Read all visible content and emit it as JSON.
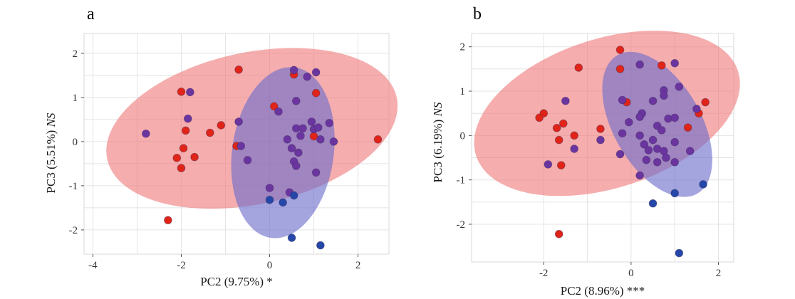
{
  "chart_data": [
    {
      "type": "scatter",
      "panel_label": "a",
      "xlabel": "PC2 (9.75%) *",
      "ylabel_prefix": "PC3 (5.51%) ",
      "ylabel_italic": "NS",
      "xlim": [
        -4.2,
        2.7
      ],
      "ylim": [
        -2.55,
        2.45
      ],
      "xticks": [
        -4,
        -2,
        0,
        2
      ],
      "yticks": [
        -2,
        -1,
        0,
        1,
        2
      ],
      "grid": true,
      "colors": {
        "red": "#e02418",
        "purple": "#6b35a0",
        "blue": "#2447a8",
        "red_ellipse": "#ef7b7d",
        "blue_ellipse": "#6c6ccc"
      },
      "ellipses": [
        {
          "group": "red",
          "cx": -0.4,
          "cy": 0.3,
          "rx": 3.35,
          "ry": 1.72,
          "angle_deg": 12
        },
        {
          "group": "blue",
          "cx": 0.3,
          "cy": -0.25,
          "rx": 1.15,
          "ry": 1.95,
          "angle_deg": -8
        }
      ],
      "points": [
        {
          "group": "red",
          "x": -0.7,
          "y": 1.63
        },
        {
          "group": "red",
          "x": -2.0,
          "y": 1.13
        },
        {
          "group": "red",
          "x": -1.9,
          "y": 0.25
        },
        {
          "group": "red",
          "x": -1.35,
          "y": 0.2
        },
        {
          "group": "red",
          "x": -1.1,
          "y": 0.37
        },
        {
          "group": "red",
          "x": -2.1,
          "y": -0.37
        },
        {
          "group": "red",
          "x": -1.95,
          "y": -0.15
        },
        {
          "group": "red",
          "x": -1.7,
          "y": -0.35
        },
        {
          "group": "red",
          "x": -2.0,
          "y": -0.6
        },
        {
          "group": "red",
          "x": -2.3,
          "y": -1.78
        },
        {
          "group": "red",
          "x": 2.45,
          "y": 0.05
        },
        {
          "group": "red",
          "x": 0.55,
          "y": 1.52
        },
        {
          "group": "red",
          "x": 0.1,
          "y": 0.8
        },
        {
          "group": "red",
          "x": 1.05,
          "y": 1.1
        },
        {
          "group": "red",
          "x": -0.75,
          "y": -0.1
        },
        {
          "group": "red",
          "x": 1.0,
          "y": 0.12
        },
        {
          "group": "purple",
          "x": -2.8,
          "y": 0.18
        },
        {
          "group": "purple",
          "x": -1.8,
          "y": 1.12
        },
        {
          "group": "purple",
          "x": -1.85,
          "y": 0.52
        },
        {
          "group": "purple",
          "x": -0.7,
          "y": 0.45
        },
        {
          "group": "purple",
          "x": -0.65,
          "y": -0.1
        },
        {
          "group": "purple",
          "x": -0.5,
          "y": -0.42
        },
        {
          "group": "purple",
          "x": 0.2,
          "y": 0.68
        },
        {
          "group": "purple",
          "x": 0.55,
          "y": 1.62
        },
        {
          "group": "purple",
          "x": 0.85,
          "y": 1.47
        },
        {
          "group": "purple",
          "x": 1.05,
          "y": 1.57
        },
        {
          "group": "purple",
          "x": 0.6,
          "y": 0.92
        },
        {
          "group": "purple",
          "x": 0.4,
          "y": 0.05
        },
        {
          "group": "purple",
          "x": 0.6,
          "y": 0.3
        },
        {
          "group": "purple",
          "x": 0.75,
          "y": 0.3
        },
        {
          "group": "purple",
          "x": 0.95,
          "y": 0.45
        },
        {
          "group": "purple",
          "x": 1.0,
          "y": 0.28
        },
        {
          "group": "purple",
          "x": 1.1,
          "y": 0.32
        },
        {
          "group": "purple",
          "x": 1.35,
          "y": 0.42
        },
        {
          "group": "purple",
          "x": 0.7,
          "y": 0.13
        },
        {
          "group": "purple",
          "x": 1.15,
          "y": 0.05
        },
        {
          "group": "purple",
          "x": 1.45,
          "y": 0.0
        },
        {
          "group": "purple",
          "x": 0.5,
          "y": -0.15
        },
        {
          "group": "purple",
          "x": 0.65,
          "y": -0.25
        },
        {
          "group": "purple",
          "x": 0.55,
          "y": -0.45
        },
        {
          "group": "purple",
          "x": 0.6,
          "y": -0.55
        },
        {
          "group": "purple",
          "x": 1.05,
          "y": -0.7
        },
        {
          "group": "purple",
          "x": 0.0,
          "y": -1.05
        },
        {
          "group": "purple",
          "x": 0.45,
          "y": -1.15
        },
        {
          "group": "blue",
          "x": 0.0,
          "y": -1.32
        },
        {
          "group": "blue",
          "x": 0.3,
          "y": -1.38
        },
        {
          "group": "blue",
          "x": 0.55,
          "y": -1.22
        },
        {
          "group": "blue",
          "x": 0.5,
          "y": -2.18
        },
        {
          "group": "blue",
          "x": 1.15,
          "y": -2.35
        }
      ]
    },
    {
      "type": "scatter",
      "panel_label": "b",
      "xlabel": "PC2 (8.96%) ***",
      "ylabel_prefix": "PC3 (6.19%) ",
      "ylabel_italic": "NS",
      "xlim": [
        -3.65,
        2.35
      ],
      "ylim": [
        -2.85,
        2.3
      ],
      "xticks": [
        -2,
        0,
        2
      ],
      "yticks": [
        -2,
        -1,
        0,
        1,
        2
      ],
      "grid": true,
      "colors": {
        "red": "#e02418",
        "purple": "#6b35a0",
        "blue": "#2447a8",
        "red_ellipse": "#ef7b7d",
        "blue_ellipse": "#6c6ccc"
      },
      "ellipses": [
        {
          "group": "red",
          "cx": -0.55,
          "cy": 0.5,
          "rx": 3.15,
          "ry": 1.68,
          "angle_deg": 18
        },
        {
          "group": "blue",
          "cx": 0.6,
          "cy": 0.25,
          "rx": 1.0,
          "ry": 1.8,
          "angle_deg": 30
        }
      ],
      "points": [
        {
          "group": "red",
          "x": -0.25,
          "y": 1.93
        },
        {
          "group": "red",
          "x": -1.2,
          "y": 1.53
        },
        {
          "group": "red",
          "x": -0.25,
          "y": 1.5
        },
        {
          "group": "red",
          "x": 0.7,
          "y": 1.58
        },
        {
          "group": "red",
          "x": -2.0,
          "y": 0.5
        },
        {
          "group": "red",
          "x": -2.1,
          "y": 0.4
        },
        {
          "group": "red",
          "x": -1.7,
          "y": 0.17
        },
        {
          "group": "red",
          "x": -1.55,
          "y": 0.27
        },
        {
          "group": "red",
          "x": -1.3,
          "y": 0.0
        },
        {
          "group": "red",
          "x": -1.65,
          "y": -0.1
        },
        {
          "group": "red",
          "x": -1.6,
          "y": -0.67
        },
        {
          "group": "red",
          "x": -1.65,
          "y": -2.22
        },
        {
          "group": "red",
          "x": -0.7,
          "y": 0.15
        },
        {
          "group": "red",
          "x": -0.1,
          "y": 0.75
        },
        {
          "group": "red",
          "x": 1.3,
          "y": 0.18
        },
        {
          "group": "red",
          "x": 1.55,
          "y": 0.5
        },
        {
          "group": "red",
          "x": 1.7,
          "y": 0.75
        },
        {
          "group": "purple",
          "x": -1.5,
          "y": 0.78
        },
        {
          "group": "purple",
          "x": -1.9,
          "y": -0.65
        },
        {
          "group": "purple",
          "x": -1.3,
          "y": -0.3
        },
        {
          "group": "purple",
          "x": -0.7,
          "y": -0.1
        },
        {
          "group": "purple",
          "x": 1.0,
          "y": 1.63
        },
        {
          "group": "purple",
          "x": 0.2,
          "y": 1.6
        },
        {
          "group": "purple",
          "x": -0.2,
          "y": 0.8
        },
        {
          "group": "purple",
          "x": 0.5,
          "y": 0.78
        },
        {
          "group": "purple",
          "x": 0.75,
          "y": 1.02
        },
        {
          "group": "purple",
          "x": 0.75,
          "y": 0.9
        },
        {
          "group": "purple",
          "x": 1.1,
          "y": 1.1
        },
        {
          "group": "purple",
          "x": 1.5,
          "y": 0.6
        },
        {
          "group": "purple",
          "x": 0.25,
          "y": 0.5
        },
        {
          "group": "purple",
          "x": 0.2,
          "y": 0.42
        },
        {
          "group": "purple",
          "x": 0.85,
          "y": 0.38
        },
        {
          "group": "purple",
          "x": 1.0,
          "y": 0.4
        },
        {
          "group": "purple",
          "x": -0.05,
          "y": 0.3
        },
        {
          "group": "purple",
          "x": 0.6,
          "y": 0.22
        },
        {
          "group": "purple",
          "x": 0.7,
          "y": 0.12
        },
        {
          "group": "purple",
          "x": -0.2,
          "y": 0.05
        },
        {
          "group": "purple",
          "x": 0.2,
          "y": 0.0
        },
        {
          "group": "purple",
          "x": 0.5,
          "y": -0.1
        },
        {
          "group": "purple",
          "x": 0.3,
          "y": -0.2
        },
        {
          "group": "purple",
          "x": 0.6,
          "y": -0.3
        },
        {
          "group": "purple",
          "x": 0.4,
          "y": -0.33
        },
        {
          "group": "purple",
          "x": 0.75,
          "y": -0.35
        },
        {
          "group": "purple",
          "x": 1.0,
          "y": -0.15
        },
        {
          "group": "purple",
          "x": 1.35,
          "y": -0.35
        },
        {
          "group": "purple",
          "x": -0.25,
          "y": -0.42
        },
        {
          "group": "purple",
          "x": 0.35,
          "y": -0.55
        },
        {
          "group": "purple",
          "x": 0.6,
          "y": -0.6
        },
        {
          "group": "purple",
          "x": 0.8,
          "y": -0.5
        },
        {
          "group": "purple",
          "x": 1.0,
          "y": -0.6
        },
        {
          "group": "purple",
          "x": 0.2,
          "y": -0.9
        },
        {
          "group": "blue",
          "x": 1.65,
          "y": -1.1
        },
        {
          "group": "blue",
          "x": 1.0,
          "y": -1.3
        },
        {
          "group": "blue",
          "x": 0.5,
          "y": -1.53
        },
        {
          "group": "blue",
          "x": 1.1,
          "y": -2.65
        }
      ]
    }
  ]
}
